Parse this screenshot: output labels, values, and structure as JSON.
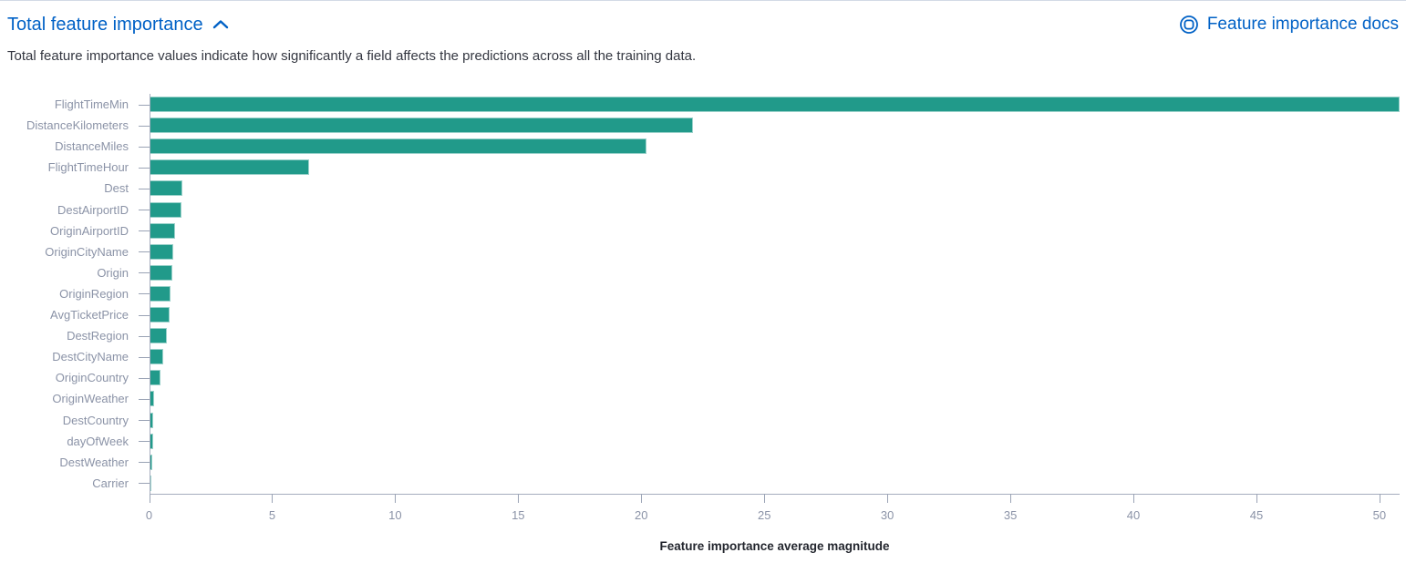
{
  "header": {
    "title": "Total feature importance",
    "collapse_icon": "chevron-up-icon",
    "docs_link_label": "Feature importance docs",
    "docs_icon": "help-docs-icon",
    "link_color": "#0061c6"
  },
  "description": "Total feature importance values indicate how significantly a field affects the predictions across all the training data.",
  "chart_data": {
    "type": "bar",
    "orientation": "horizontal",
    "title": "",
    "xlabel": "Feature importance average magnitude",
    "ylabel": "",
    "categories": [
      "FlightTimeMin",
      "DistanceKilometers",
      "DistanceMiles",
      "FlightTimeHour",
      "Dest",
      "DestAirportID",
      "OriginAirportID",
      "OriginCityName",
      "Origin",
      "OriginRegion",
      "AvgTicketPrice",
      "DestRegion",
      "DestCityName",
      "OriginCountry",
      "OriginWeather",
      "DestCountry",
      "dayOfWeek",
      "DestWeather",
      "Carrier"
    ],
    "values": [
      50.8,
      22.1,
      20.2,
      6.5,
      1.35,
      1.3,
      1.05,
      0.98,
      0.94,
      0.87,
      0.83,
      0.69,
      0.57,
      0.43,
      0.18,
      0.15,
      0.14,
      0.12,
      0.03
    ],
    "x_ticks": [
      0,
      5,
      10,
      15,
      20,
      25,
      30,
      35,
      40,
      45,
      50
    ],
    "xlim": [
      0,
      50.8
    ],
    "grid": false,
    "legend": "none",
    "bar_color": "#219a8a",
    "axis_label_color": "#8b93a7"
  }
}
